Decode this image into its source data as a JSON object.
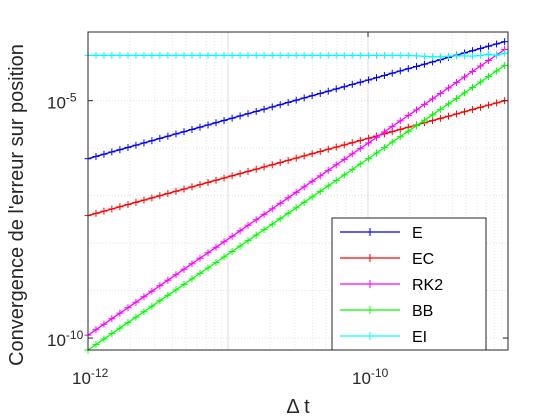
{
  "chart_data": {
    "type": "line",
    "xlabel": "Δ t",
    "ylabel": "Convergence de l'erreur sur position",
    "xscale": "log",
    "yscale": "log",
    "xlim": [
      1e-12,
      1e-09
    ],
    "ylim": [
      5.6e-11,
      0.00028
    ],
    "grid": true,
    "legend_position": "bottom-right",
    "x_ticks": [
      {
        "value": 1e-12,
        "base": "10",
        "exponent": "-12"
      },
      {
        "value": 1e-10,
        "base": "10",
        "exponent": "-10"
      }
    ],
    "y_ticks": [
      {
        "value": 1e-10,
        "base": "10",
        "exponent": "-10"
      },
      {
        "value": 1e-05,
        "base": "10",
        "exponent": "-5"
      }
    ],
    "x": [
      1e-12,
      1.14e-12,
      1.3e-12,
      1.48e-12,
      1.69e-12,
      1.93e-12,
      2.2e-12,
      2.51e-12,
      2.86e-12,
      3.26e-12,
      3.72e-12,
      4.25e-12,
      4.85e-12,
      5.53e-12,
      6.31e-12,
      7.2e-12,
      8.21e-12,
      9.37e-12,
      1.07e-11,
      1.22e-11,
      1.39e-11,
      1.59e-11,
      1.81e-11,
      2.07e-11,
      2.36e-11,
      2.69e-11,
      3.07e-11,
      3.5e-11,
      3.99e-11,
      4.56e-11,
      5.2e-11,
      5.93e-11,
      6.77e-11,
      7.72e-11,
      8.81e-11,
      1.01e-10,
      1.15e-10,
      1.31e-10,
      1.49e-10,
      1.7e-10,
      1.94e-10,
      2.22e-10,
      2.53e-10,
      2.89e-10,
      3.29e-10,
      3.76e-10,
      4.29e-10,
      4.89e-10,
      5.58e-10,
      6.37e-10,
      7.26e-10,
      8.29e-10,
      9.46e-10
    ],
    "series": [
      {
        "name": "E",
        "color": "#0000ff",
        "y_start": 6e-07,
        "y_end": 0.000175
      },
      {
        "name": "EC",
        "color": "#ff0000",
        "y_start": 3.8e-08,
        "y_end": 1e-05
      },
      {
        "name": "RK2",
        "color": "#ff00ff",
        "y_start": 1.15e-10,
        "y_end": 0.00012
      },
      {
        "name": "BB",
        "color": "#00ff00",
        "y_start": 5.6e-11,
        "y_end": 5.5e-05
      },
      {
        "name": "EI",
        "color": "#00ffff",
        "y_values": [
          9e-05,
          9e-05,
          9e-05,
          9e-05,
          9e-05,
          9e-05,
          9e-05,
          9e-05,
          9e-05,
          9e-05,
          9e-05,
          9e-05,
          9e-05,
          9e-05,
          9e-05,
          9e-05,
          9e-05,
          9e-05,
          9e-05,
          9e-05,
          9e-05,
          9e-05,
          9e-05,
          9e-05,
          9e-05,
          9e-05,
          9e-05,
          9e-05,
          9e-05,
          9e-05,
          9e-05,
          9e-05,
          9e-05,
          9e-05,
          9e-05,
          9e-05,
          9e-05,
          9e-05,
          9e-05,
          9e-05,
          9e-05,
          8.8e-05,
          8.6e-05,
          8.4e-05,
          8.4e-05,
          8.7e-05,
          8.8e-05,
          8.8e-05,
          8.7e-05,
          9e-05,
          9.5e-05,
          9e-05,
          0.0001
        ]
      }
    ]
  }
}
